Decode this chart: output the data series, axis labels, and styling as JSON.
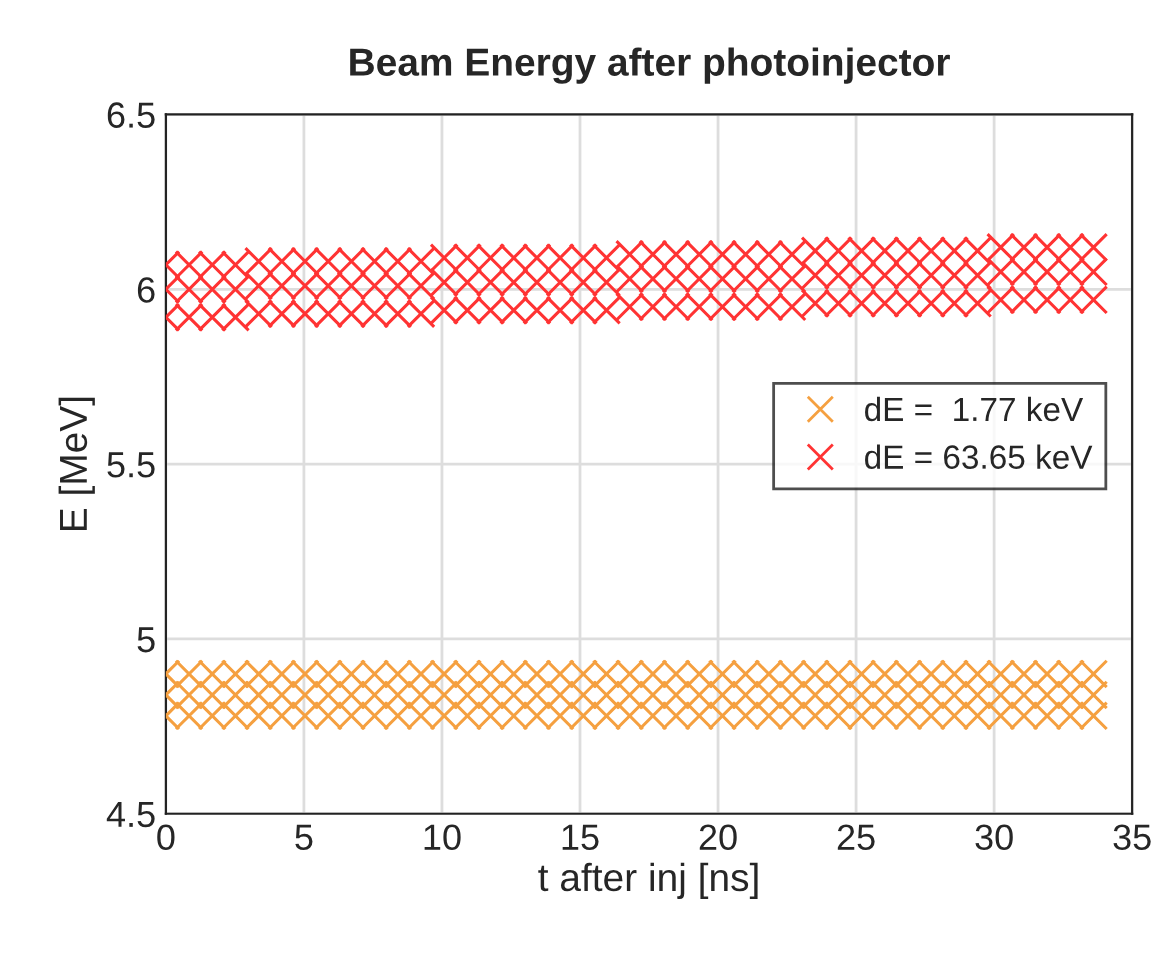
{
  "chart_data": {
    "type": "scatter",
    "title": "Beam Energy after photoinjector",
    "xlabel": "t after inj [ns]",
    "ylabel": "E [MeV]",
    "x": [
      0,
      0.84,
      1.68,
      2.52,
      3.36,
      4.2,
      5.04,
      5.88,
      6.72,
      7.56,
      8.4,
      9.24,
      10.08,
      10.92,
      11.76,
      12.6,
      13.44,
      14.28,
      15.12,
      15.96,
      16.8,
      17.64,
      18.48,
      19.32,
      20.16,
      21,
      21.84,
      22.68,
      23.52,
      24.36,
      25.2,
      26.04,
      26.88,
      27.72,
      28.56,
      29.4,
      30.24,
      31.08,
      31.92,
      32.76,
      33.6
    ],
    "series": [
      {
        "name": "dE =  1.77 keV",
        "color": "#f5a040",
        "values": [
          4.84,
          4.84,
          4.84,
          4.84,
          4.84,
          4.84,
          4.84,
          4.84,
          4.84,
          4.84,
          4.84,
          4.84,
          4.84,
          4.84,
          4.84,
          4.84,
          4.84,
          4.84,
          4.84,
          4.84,
          4.84,
          4.84,
          4.84,
          4.84,
          4.84,
          4.84,
          4.84,
          4.84,
          4.84,
          4.84,
          4.84,
          4.84,
          4.84,
          4.84,
          4.84,
          4.84,
          4.84,
          4.84,
          4.84,
          4.84,
          4.84
        ]
      },
      {
        "color": "#f5a040",
        "values": [
          4.78,
          4.78,
          4.78,
          4.78,
          4.78,
          4.78,
          4.78,
          4.78,
          4.78,
          4.78,
          4.78,
          4.78,
          4.78,
          4.78,
          4.78,
          4.78,
          4.78,
          4.78,
          4.78,
          4.78,
          4.78,
          4.78,
          4.78,
          4.78,
          4.78,
          4.78,
          4.78,
          4.78,
          4.78,
          4.78,
          4.78,
          4.78,
          4.78,
          4.78,
          4.78,
          4.78,
          4.78,
          4.78,
          4.78,
          4.78,
          4.78
        ]
      },
      {
        "color": "#f5a040",
        "values": [
          4.9,
          4.9,
          4.9,
          4.9,
          4.9,
          4.9,
          4.9,
          4.9,
          4.9,
          4.9,
          4.9,
          4.9,
          4.9,
          4.9,
          4.9,
          4.9,
          4.9,
          4.9,
          4.9,
          4.9,
          4.9,
          4.9,
          4.9,
          4.9,
          4.9,
          4.9,
          4.9,
          4.9,
          4.9,
          4.9,
          4.9,
          4.9,
          4.9,
          4.9,
          4.9,
          4.9,
          4.9,
          4.9,
          4.9,
          4.9,
          4.9
        ]
      },
      {
        "name": "dE = 63.65 keV",
        "color": "#ff3333",
        "values": [
          6.0,
          6.0,
          6.0,
          6.0,
          6.01,
          6.01,
          6.01,
          6.01,
          6.01,
          6.01,
          6.01,
          6.01,
          6.02,
          6.02,
          6.02,
          6.02,
          6.02,
          6.02,
          6.02,
          6.02,
          6.03,
          6.03,
          6.03,
          6.03,
          6.03,
          6.03,
          6.03,
          6.03,
          6.04,
          6.04,
          6.04,
          6.04,
          6.04,
          6.04,
          6.04,
          6.04,
          6.05,
          6.05,
          6.05,
          6.05,
          6.05
        ]
      },
      {
        "color": "#ff3333",
        "values": [
          5.92,
          5.92,
          5.92,
          5.92,
          5.93,
          5.93,
          5.93,
          5.93,
          5.93,
          5.93,
          5.93,
          5.93,
          5.94,
          5.94,
          5.94,
          5.94,
          5.94,
          5.94,
          5.94,
          5.94,
          5.95,
          5.95,
          5.95,
          5.95,
          5.95,
          5.95,
          5.95,
          5.95,
          5.96,
          5.96,
          5.96,
          5.96,
          5.96,
          5.96,
          5.96,
          5.96,
          5.97,
          5.97,
          5.97,
          5.97,
          5.97
        ]
      },
      {
        "color": "#ff3333",
        "values": [
          6.07,
          6.07,
          6.07,
          6.07,
          6.08,
          6.08,
          6.08,
          6.08,
          6.08,
          6.08,
          6.08,
          6.08,
          6.09,
          6.09,
          6.09,
          6.09,
          6.09,
          6.09,
          6.09,
          6.09,
          6.1,
          6.1,
          6.1,
          6.1,
          6.1,
          6.1,
          6.1,
          6.1,
          6.11,
          6.11,
          6.11,
          6.11,
          6.11,
          6.11,
          6.11,
          6.11,
          6.12,
          6.12,
          6.12,
          6.12,
          6.12
        ]
      }
    ],
    "xlim": [
      0,
      35
    ],
    "xticks": [
      0,
      5,
      10,
      15,
      20,
      25,
      30,
      35
    ],
    "ylim": [
      4.5,
      6.5
    ],
    "yticks": [
      4.5,
      5,
      5.5,
      6,
      6.5
    ],
    "grid": true,
    "legend": "right",
    "marker": "cross"
  }
}
